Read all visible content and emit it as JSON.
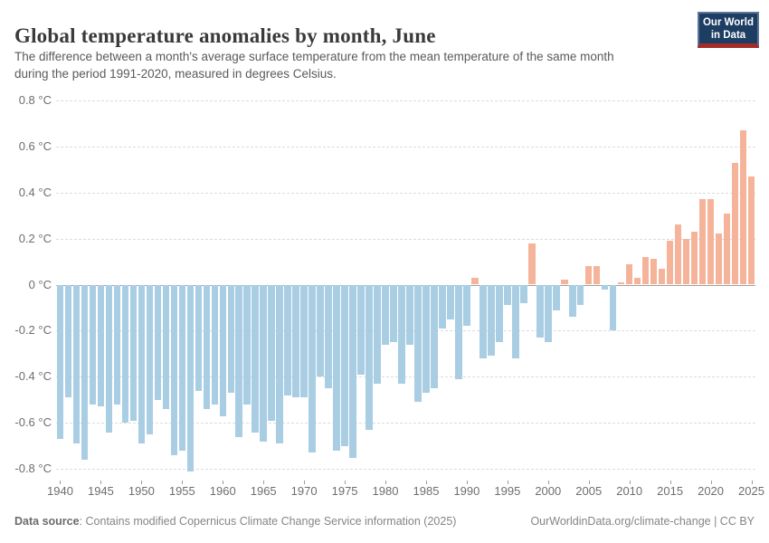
{
  "header": {
    "title": "Global temperature anomalies by month, June",
    "subtitle_line1": "The difference between a month's average surface temperature from the mean temperature of the same month",
    "subtitle_line2": "during the period 1991-2020, measured in degrees Celsius.",
    "logo": {
      "line1": "Our World",
      "line2": "in Data"
    }
  },
  "chart_data": {
    "type": "bar",
    "title": "Global temperature anomalies by month, June",
    "xlabel": "",
    "ylabel": "degrees Celsius",
    "ylim": [
      -0.85,
      0.85
    ],
    "yticks": [
      0.8,
      0.6,
      0.4,
      0.2,
      0,
      -0.2,
      -0.4,
      -0.6,
      -0.8
    ],
    "ytick_labels": [
      "0.8 °C",
      "0.6 °C",
      "0.4 °C",
      "0.2 °C",
      "0 °C",
      "-0.2 °C",
      "-0.4 °C",
      "-0.6 °C",
      "-0.8 °C"
    ],
    "xtick_years": [
      1940,
      1945,
      1950,
      1955,
      1960,
      1965,
      1970,
      1975,
      1980,
      1985,
      1990,
      1995,
      2000,
      2005,
      2010,
      2015,
      2020,
      2025
    ],
    "grid": "horizontal-dashed",
    "legend": "none",
    "colors": {
      "positive": "#f5b49a",
      "negative": "#a9cee3"
    },
    "x": [
      1940,
      1941,
      1942,
      1943,
      1944,
      1945,
      1946,
      1947,
      1948,
      1949,
      1950,
      1951,
      1952,
      1953,
      1954,
      1955,
      1956,
      1957,
      1958,
      1959,
      1960,
      1961,
      1962,
      1963,
      1964,
      1965,
      1966,
      1967,
      1968,
      1969,
      1970,
      1971,
      1972,
      1973,
      1974,
      1975,
      1976,
      1977,
      1978,
      1979,
      1980,
      1981,
      1982,
      1983,
      1984,
      1985,
      1986,
      1987,
      1988,
      1989,
      1990,
      1991,
      1992,
      1993,
      1994,
      1995,
      1996,
      1997,
      1998,
      1999,
      2000,
      2001,
      2002,
      2003,
      2004,
      2005,
      2006,
      2007,
      2008,
      2009,
      2010,
      2011,
      2012,
      2013,
      2014,
      2015,
      2016,
      2017,
      2018,
      2019,
      2020,
      2021,
      2022,
      2023,
      2024,
      2025
    ],
    "values": [
      -0.67,
      -0.49,
      -0.69,
      -0.76,
      -0.52,
      -0.53,
      -0.64,
      -0.52,
      -0.6,
      -0.59,
      -0.69,
      -0.65,
      -0.5,
      -0.54,
      -0.74,
      -0.72,
      -0.81,
      -0.46,
      -0.54,
      -0.52,
      -0.57,
      -0.47,
      -0.66,
      -0.52,
      -0.64,
      -0.68,
      -0.59,
      -0.69,
      -0.48,
      -0.49,
      -0.49,
      -0.73,
      -0.4,
      -0.45,
      -0.72,
      -0.7,
      -0.75,
      -0.39,
      -0.63,
      -0.43,
      -0.26,
      -0.25,
      -0.43,
      -0.26,
      -0.51,
      -0.47,
      -0.45,
      -0.19,
      -0.15,
      -0.41,
      -0.18,
      0.03,
      -0.32,
      -0.31,
      -0.25,
      -0.09,
      -0.32,
      -0.08,
      0.18,
      -0.23,
      -0.25,
      -0.11,
      0.02,
      -0.14,
      -0.09,
      0.08,
      0.08,
      -0.02,
      -0.2,
      0.01,
      0.09,
      0.03,
      0.12,
      0.11,
      0.07,
      0.19,
      0.26,
      0.2,
      0.23,
      0.37,
      0.37,
      0.22,
      0.31,
      0.53,
      0.67,
      0.47
    ]
  },
  "footer": {
    "source_label": "Data source",
    "source_rest": ": Contains modified Copernicus Climate Change Service information (2025)",
    "credit": "OurWorldinData.org/climate-change | CC BY"
  }
}
